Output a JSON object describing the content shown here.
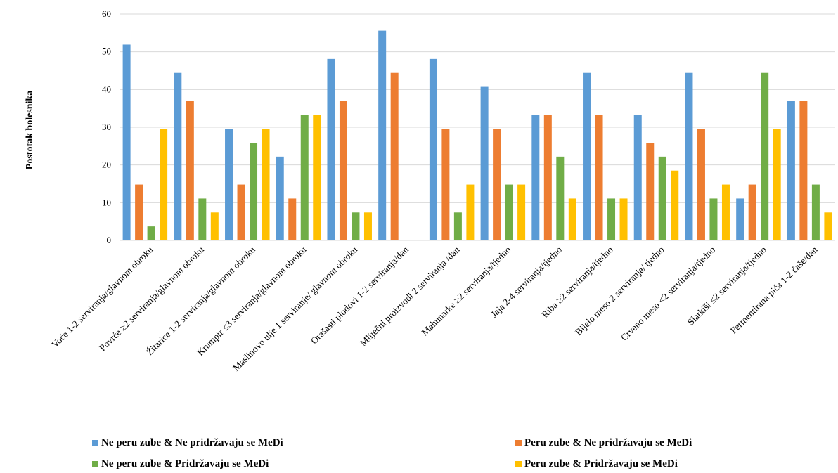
{
  "chart_data": {
    "type": "bar",
    "ylabel": "Postotak bolesnika",
    "ylim": [
      0,
      60
    ],
    "yticks": [
      0,
      10,
      20,
      30,
      40,
      50,
      60
    ],
    "grid": true,
    "legend_position": "bottom",
    "categories": [
      "Voće 1-2 serviranja/glavnom obroku",
      "Povrće ≥2 serviranja/glavnom  obroku",
      "Žitarice 1-2 serviranja/glavnom obroku",
      "Krumpir ≤3 serviranja/glavnom  obroku",
      "Maslinovo ulje 1 serviranje/ glavnom obroku",
      "Orašasti plodovi 1-2 serviranja/dan",
      "Mliječni proizvodi 2 serviranja /dan",
      "Mahunarke ≥2 serviranja/tjedno",
      "Jaja 2-4 serviranja/tjedno",
      "Riba ≥2 serviranja/tjedno",
      "Bijelo meso 2 serviranja/ tjedno",
      "Crveno meso <2 serviranja/tjedno",
      "Slatkiši ≤2 serviranja/tjedno",
      "Fermentirana pića 1-2 čaše/dan"
    ],
    "series": [
      {
        "name": "Ne peru zube & Ne pridržavaju se MeDi",
        "color": "#5b9bd5",
        "values": [
          51.9,
          44.4,
          29.6,
          22.2,
          48.1,
          55.6,
          48.1,
          40.7,
          33.3,
          44.4,
          33.3,
          44.4,
          11.1,
          37.0
        ]
      },
      {
        "name": "Peru zube & Ne pridržavaju se MeDi",
        "color": "#ed7d31",
        "values": [
          14.8,
          37.0,
          14.8,
          11.1,
          37.0,
          44.4,
          29.6,
          29.6,
          33.3,
          33.3,
          25.9,
          29.6,
          14.8,
          37.0
        ]
      },
      {
        "name": "Ne peru zube & Pridržavaju se MeDi",
        "color": "#70ad47",
        "values": [
          3.7,
          11.1,
          25.9,
          33.3,
          7.4,
          0,
          7.4,
          14.8,
          22.2,
          11.1,
          22.2,
          11.1,
          44.4,
          14.8
        ]
      },
      {
        "name": "Peru zube & Pridržavaju se MeDi",
        "color": "#ffc000",
        "values": [
          29.6,
          7.4,
          29.6,
          33.3,
          7.4,
          0,
          14.8,
          14.8,
          11.1,
          11.1,
          18.5,
          14.8,
          29.6,
          7.4
        ]
      }
    ]
  }
}
